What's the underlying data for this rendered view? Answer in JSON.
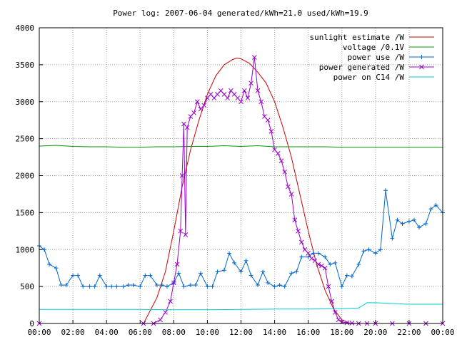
{
  "chart_data": {
    "type": "line",
    "title": "Power log: 2007-06-04 generated/kWh=21.0 used/kWh=19.9",
    "xlabel": "",
    "ylabel": "",
    "xlim": [
      0,
      24
    ],
    "ylim": [
      0,
      4000
    ],
    "x_ticks": [
      "00:00",
      "02:00",
      "04:00",
      "06:00",
      "08:00",
      "10:00",
      "12:00",
      "14:00",
      "16:00",
      "18:00",
      "20:00",
      "22:00",
      "00:00"
    ],
    "y_ticks": [
      "0",
      "500",
      "1000",
      "1500",
      "2000",
      "2500",
      "3000",
      "3500",
      "4000"
    ],
    "grid": true,
    "legend_position": "top-right",
    "series": [
      {
        "name": "sunlight estimate /W",
        "color": "#cc0000",
        "marker": "none",
        "x": [
          6.2,
          7.0,
          7.5,
          8.0,
          8.5,
          9.0,
          9.5,
          10.0,
          10.5,
          11.0,
          11.5,
          11.75,
          12.0,
          12.5,
          13.0,
          13.5,
          14.0,
          14.5,
          15.0,
          15.5,
          16.0,
          16.5,
          17.0,
          17.5,
          18.0,
          18.5
        ],
        "y": [
          0,
          350,
          700,
          1250,
          1850,
          2350,
          2750,
          3100,
          3350,
          3500,
          3570,
          3590,
          3580,
          3520,
          3400,
          3250,
          3000,
          2650,
          2250,
          1750,
          1250,
          800,
          450,
          200,
          50,
          0
        ]
      },
      {
        "name": "voltage /0.1V",
        "color": "#009900",
        "marker": "none",
        "x": [
          0,
          1.0,
          2.0,
          3.0,
          4.0,
          5.0,
          6.0,
          7.0,
          8.0,
          9.0,
          10.0,
          11.0,
          12.0,
          13.0,
          14.0,
          15.0,
          16.0,
          17.0,
          18.0,
          19.0,
          20.0,
          21.0,
          22.0,
          23.0,
          24.0
        ],
        "y": [
          2400,
          2410,
          2395,
          2390,
          2390,
          2385,
          2385,
          2390,
          2390,
          2395,
          2395,
          2405,
          2395,
          2405,
          2390,
          2390,
          2390,
          2390,
          2385,
          2385,
          2385,
          2385,
          2385,
          2385,
          2385
        ]
      },
      {
        "name": "power use /W",
        "color": "#0066cc",
        "marker": "+",
        "x": [
          0,
          0.3,
          0.6,
          1.0,
          1.3,
          1.6,
          2.0,
          2.3,
          2.6,
          3.0,
          3.3,
          3.6,
          4.0,
          4.3,
          4.6,
          5.0,
          5.3,
          5.6,
          6.0,
          6.3,
          6.6,
          7.0,
          7.3,
          7.6,
          8.0,
          8.3,
          8.6,
          9.0,
          9.3,
          9.6,
          10.0,
          10.3,
          10.6,
          11.0,
          11.3,
          11.6,
          12.0,
          12.3,
          12.6,
          13.0,
          13.3,
          13.6,
          14.0,
          14.3,
          14.6,
          15.0,
          15.3,
          15.6,
          16.0,
          16.3,
          16.6,
          17.0,
          17.3,
          17.6,
          18.0,
          18.3,
          18.6,
          19.0,
          19.3,
          19.6,
          20.0,
          20.3,
          20.6,
          21.0,
          21.3,
          21.6,
          22.0,
          22.3,
          22.6,
          23.0,
          23.3,
          23.6,
          24.0
        ],
        "y": [
          1050,
          1000,
          800,
          750,
          520,
          520,
          650,
          650,
          500,
          500,
          500,
          650,
          500,
          500,
          500,
          500,
          520,
          520,
          500,
          650,
          650,
          520,
          520,
          500,
          550,
          680,
          500,
          520,
          520,
          680,
          500,
          500,
          700,
          720,
          950,
          820,
          700,
          850,
          650,
          520,
          700,
          550,
          500,
          520,
          500,
          680,
          700,
          900,
          900,
          950,
          950,
          900,
          800,
          820,
          500,
          650,
          640,
          800,
          980,
          1000,
          950,
          1000,
          1800,
          1150,
          1400,
          1350,
          1380,
          1400,
          1300,
          1350,
          1550,
          1600,
          1500
        ]
      },
      {
        "name": "power generated /W",
        "color": "#9900cc",
        "marker": "x",
        "x": [
          0,
          6.2,
          6.8,
          7.2,
          7.5,
          7.8,
          8.0,
          8.2,
          8.4,
          8.5,
          8.6,
          8.7,
          8.8,
          9.0,
          9.2,
          9.4,
          9.6,
          9.8,
          10.0,
          10.2,
          10.4,
          10.6,
          10.8,
          11.0,
          11.2,
          11.4,
          11.6,
          11.8,
          12.0,
          12.2,
          12.4,
          12.6,
          12.8,
          13.0,
          13.2,
          13.4,
          13.6,
          13.8,
          14.0,
          14.2,
          14.4,
          14.6,
          14.8,
          15.0,
          15.2,
          15.4,
          15.6,
          15.8,
          16.0,
          16.2,
          16.4,
          16.6,
          16.8,
          17.0,
          17.2,
          17.4,
          17.6,
          17.8,
          18.0,
          18.3,
          18.6,
          19.0,
          19.5,
          20.0,
          21.0,
          22.0,
          23.0,
          24.0
        ],
        "y": [
          0,
          0,
          0,
          50,
          150,
          300,
          550,
          800,
          1250,
          2000,
          2700,
          1200,
          2650,
          2800,
          2850,
          3000,
          2900,
          2950,
          3050,
          3100,
          3050,
          3100,
          3150,
          3100,
          3050,
          3150,
          3100,
          3050,
          3000,
          3150,
          3050,
          3250,
          3600,
          3150,
          3000,
          2800,
          2750,
          2600,
          2350,
          2300,
          2200,
          2050,
          1850,
          1750,
          1400,
          1250,
          1100,
          1000,
          950,
          880,
          850,
          800,
          780,
          750,
          500,
          300,
          150,
          50,
          20,
          10,
          5,
          0,
          0,
          0,
          0,
          0,
          0,
          0
        ]
      },
      {
        "name": "power on C14 /W",
        "color": "#00cccc",
        "marker": "none",
        "x": [
          0,
          2.0,
          4.0,
          6.0,
          8.0,
          10.0,
          12.0,
          14.0,
          16.0,
          18.0,
          19.0,
          19.5,
          20.0,
          21.0,
          22.0,
          23.0,
          24.0
        ],
        "y": [
          190,
          190,
          190,
          190,
          185,
          185,
          190,
          195,
          195,
          200,
          210,
          280,
          280,
          270,
          260,
          260,
          260
        ]
      }
    ]
  }
}
